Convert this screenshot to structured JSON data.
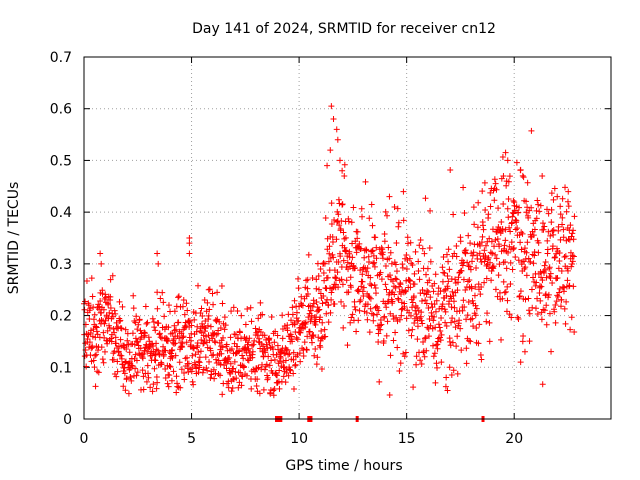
{
  "chart_data": {
    "type": "scatter",
    "title": "Day 141 of 2024, SRMTID for receiver cn12",
    "xlabel": "GPS time / hours",
    "ylabel": "SRMTID / TECUs",
    "xlim": [
      0,
      24.5
    ],
    "ylim": [
      0,
      0.7
    ],
    "x_ticks": [
      0,
      5,
      10,
      15,
      20
    ],
    "x_tick_labels": [
      "0",
      "5",
      "10",
      "15",
      "20"
    ],
    "y_ticks": [
      0,
      0.1,
      0.2,
      0.3,
      0.4,
      0.5,
      0.6,
      0.7
    ],
    "y_tick_labels": [
      "0",
      "0.1",
      "0.2",
      "0.3",
      "0.4",
      "0.5",
      "0.6",
      "0.7"
    ],
    "grid": true,
    "marker": "+",
    "color": "#ff0000",
    "trend": {
      "x": [
        0,
        0.5,
        1,
        1.5,
        2,
        2.5,
        3,
        3.5,
        4,
        4.5,
        5,
        5.5,
        6,
        6.5,
        7,
        7.5,
        8,
        8.5,
        9,
        9.5,
        10,
        10.5,
        11,
        11.5,
        12,
        12.5,
        13,
        13.5,
        14,
        14.5,
        15,
        15.5,
        16,
        16.5,
        17,
        17.5,
        18,
        18.5,
        19,
        19.5,
        20,
        20.5,
        21,
        21.5,
        22,
        22.5,
        22.8
      ],
      "y": [
        0.17,
        0.16,
        0.2,
        0.15,
        0.12,
        0.13,
        0.12,
        0.13,
        0.13,
        0.14,
        0.15,
        0.16,
        0.15,
        0.14,
        0.12,
        0.12,
        0.11,
        0.12,
        0.11,
        0.13,
        0.18,
        0.2,
        0.2,
        0.3,
        0.33,
        0.28,
        0.27,
        0.26,
        0.24,
        0.23,
        0.24,
        0.22,
        0.21,
        0.2,
        0.24,
        0.26,
        0.29,
        0.3,
        0.33,
        0.35,
        0.36,
        0.33,
        0.3,
        0.29,
        0.3,
        0.31,
        0.3
      ]
    },
    "spread": 0.045,
    "outliers": [
      {
        "x": 0.75,
        "y": 0.32
      },
      {
        "x": 0.8,
        "y": 0.3
      },
      {
        "x": 3.4,
        "y": 0.32
      },
      {
        "x": 3.45,
        "y": 0.3
      },
      {
        "x": 3.4,
        "y": 0.245
      },
      {
        "x": 4.9,
        "y": 0.35
      },
      {
        "x": 4.9,
        "y": 0.34
      },
      {
        "x": 4.9,
        "y": 0.32
      },
      {
        "x": 5.8,
        "y": 0.25
      },
      {
        "x": 11.5,
        "y": 0.605
      },
      {
        "x": 11.6,
        "y": 0.58
      },
      {
        "x": 11.75,
        "y": 0.56
      },
      {
        "x": 11.8,
        "y": 0.54
      },
      {
        "x": 11.45,
        "y": 0.52
      },
      {
        "x": 11.3,
        "y": 0.49
      },
      {
        "x": 11.9,
        "y": 0.5
      },
      {
        "x": 12.0,
        "y": 0.48
      },
      {
        "x": 12.1,
        "y": 0.47
      },
      {
        "x": 19.6,
        "y": 0.515
      },
      {
        "x": 19.7,
        "y": 0.5
      },
      {
        "x": 19.5,
        "y": 0.47
      },
      {
        "x": 19.65,
        "y": 0.46
      },
      {
        "x": 17.0,
        "y": 0.1
      },
      {
        "x": 17.1,
        "y": 0.085
      },
      {
        "x": 16.9,
        "y": 0.055
      },
      {
        "x": 14.2,
        "y": 0.43
      },
      {
        "x": 21.3,
        "y": 0.47
      },
      {
        "x": 22.0,
        "y": 0.43
      },
      {
        "x": 22.5,
        "y": 0.42
      },
      {
        "x": 20.4,
        "y": 0.15
      },
      {
        "x": 20.5,
        "y": 0.13
      },
      {
        "x": 20.3,
        "y": 0.11
      },
      {
        "x": 9.0,
        "y": 0.07
      },
      {
        "x": 8.8,
        "y": 0.055
      },
      {
        "x": 11.0,
        "y": 0.29
      },
      {
        "x": 10.8,
        "y": 0.27
      }
    ],
    "zero_points_x": [
      8.95,
      9.0,
      9.05,
      9.15,
      10.45,
      10.5,
      10.55,
      12.7,
      18.55
    ]
  }
}
